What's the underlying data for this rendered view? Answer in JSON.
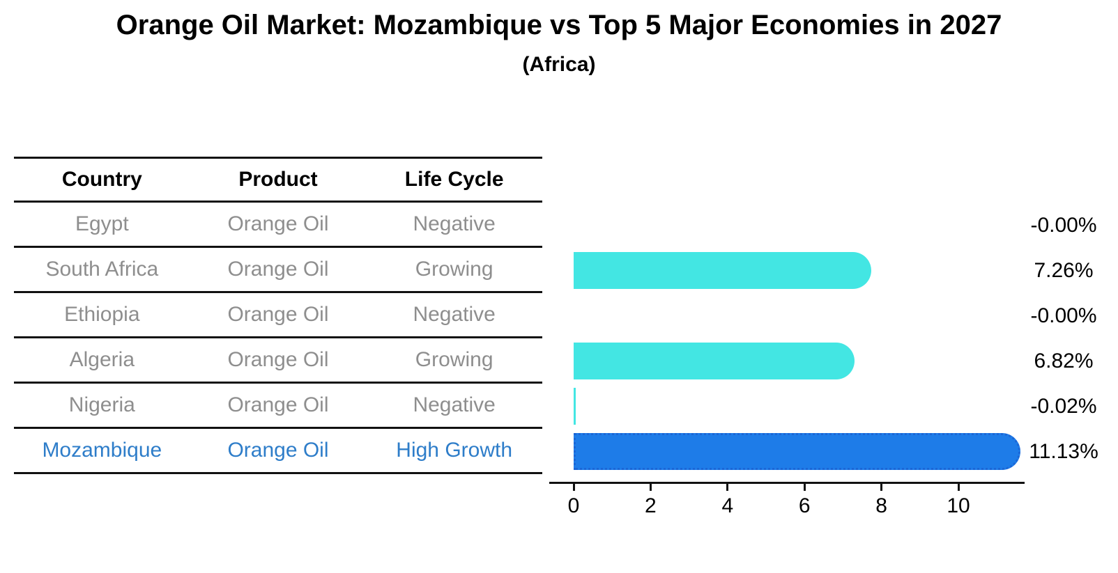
{
  "title": "Orange Oil Market: Mozambique vs Top 5 Major Economies in 2027",
  "subtitle": "(Africa)",
  "table": {
    "headers": [
      "Country",
      "Product",
      "Life Cycle"
    ],
    "rows": [
      {
        "country": "Egypt",
        "product": "Orange Oil",
        "life_cycle": "Negative",
        "highlight": false
      },
      {
        "country": "South Africa",
        "product": "Orange Oil",
        "life_cycle": "Growing",
        "highlight": false
      },
      {
        "country": "Ethiopia",
        "product": "Orange Oil",
        "life_cycle": "Negative",
        "highlight": false
      },
      {
        "country": "Algeria",
        "product": "Orange Oil",
        "life_cycle": "Growing",
        "highlight": false
      },
      {
        "country": "Nigeria",
        "product": "Orange Oil",
        "life_cycle": "Negative",
        "highlight": false
      },
      {
        "country": "Mozambique",
        "product": "Orange Oil",
        "life_cycle": "High Growth",
        "highlight": true
      }
    ]
  },
  "chart_data": {
    "type": "bar",
    "orientation": "horizontal",
    "title": "Orange Oil Market: Mozambique vs Top 5 Major Economies in 2027",
    "subtitle": "(Africa)",
    "categories": [
      "Egypt",
      "South Africa",
      "Ethiopia",
      "Algeria",
      "Nigeria",
      "Mozambique"
    ],
    "values": [
      -0.0,
      7.26,
      -0.0,
      6.82,
      -0.02,
      11.13
    ],
    "value_labels": [
      "-0.00%",
      "7.26%",
      "-0.00%",
      "6.82%",
      "-0.02%",
      "11.13%"
    ],
    "x_ticks": [
      0,
      2,
      4,
      6,
      8,
      10
    ],
    "xlim": [
      0,
      11.7
    ],
    "grid": false,
    "legend": "none",
    "highlight_index": 5
  },
  "colors": {
    "bar_cyan": "#43e6e3",
    "bar_blue": "#1e7ce8",
    "bar_blue_border": "#1b66d6",
    "accent_text": "#2e7dc9",
    "muted_text": "#8e8e8e",
    "line": "#111111"
  }
}
